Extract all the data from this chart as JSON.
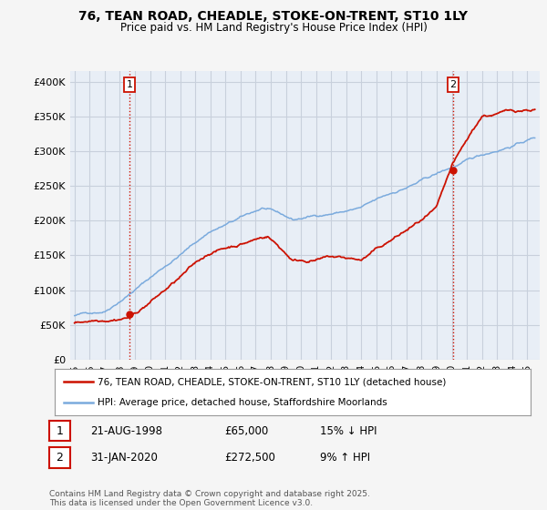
{
  "title_line1": "76, TEAN ROAD, CHEADLE, STOKE-ON-TRENT, ST10 1LY",
  "title_line2": "Price paid vs. HM Land Registry's House Price Index (HPI)",
  "ylabel_ticks": [
    "£0",
    "£50K",
    "£100K",
    "£150K",
    "£200K",
    "£250K",
    "£300K",
    "£350K",
    "£400K"
  ],
  "ytick_values": [
    0,
    50000,
    100000,
    150000,
    200000,
    250000,
    300000,
    350000,
    400000
  ],
  "ylim": [
    0,
    415000
  ],
  "xlim_start": 1994.7,
  "xlim_end": 2025.8,
  "hpi_color": "#7aaadd",
  "price_color": "#cc1100",
  "vline_color": "#cc1100",
  "plot_bg": "#e8eef6",
  "transaction1_year": 1998.64,
  "transaction1_price": 65000,
  "transaction1_label": "1",
  "transaction2_year": 2020.08,
  "transaction2_price": 272500,
  "transaction2_label": "2",
  "legend_line1": "76, TEAN ROAD, CHEADLE, STOKE-ON-TRENT, ST10 1LY (detached house)",
  "legend_line2": "HPI: Average price, detached house, Staffordshire Moorlands",
  "table_row1": [
    "1",
    "21-AUG-1998",
    "£65,000",
    "15% ↓ HPI"
  ],
  "table_row2": [
    "2",
    "31-JAN-2020",
    "£272,500",
    "9% ↑ HPI"
  ],
  "footnote": "Contains HM Land Registry data © Crown copyright and database right 2025.\nThis data is licensed under the Open Government Licence v3.0.",
  "background_color": "#f5f5f5",
  "grid_color": "#c8d0dc"
}
